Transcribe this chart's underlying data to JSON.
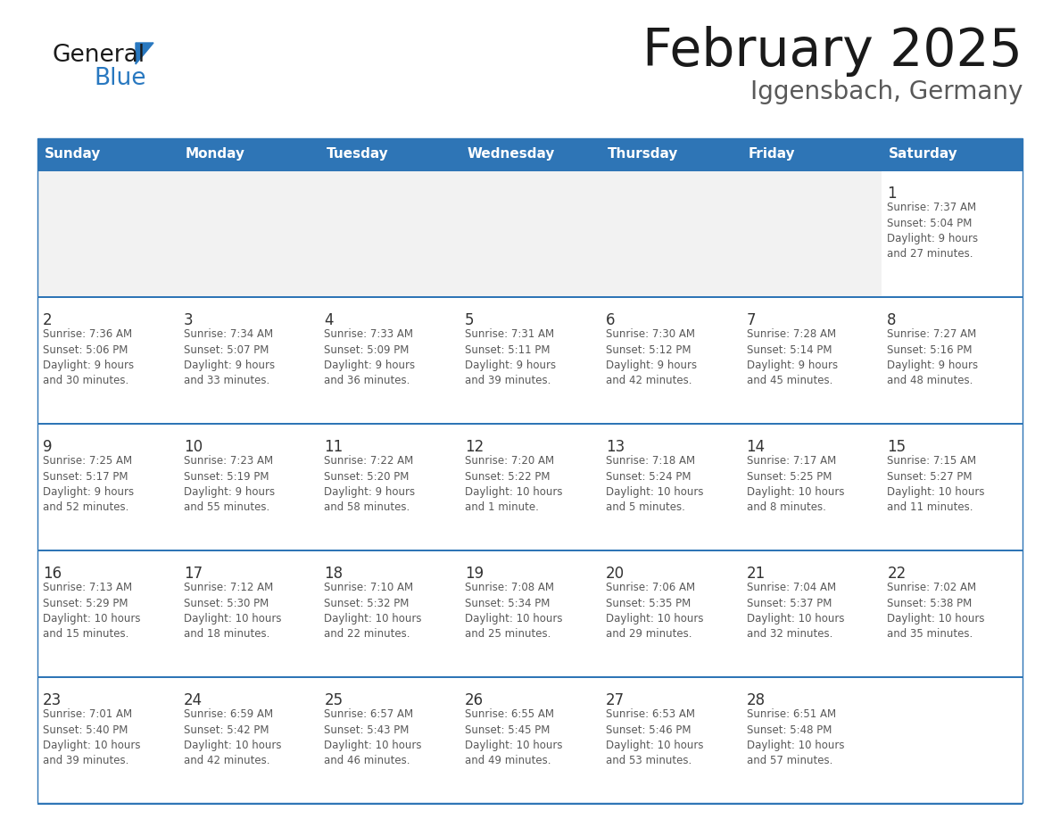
{
  "title": "February 2025",
  "subtitle": "Iggensbach, Germany",
  "days_of_week": [
    "Sunday",
    "Monday",
    "Tuesday",
    "Wednesday",
    "Thursday",
    "Friday",
    "Saturday"
  ],
  "header_bg": "#2E75B6",
  "header_text": "#FFFFFF",
  "cell_bg_white": "#FFFFFF",
  "cell_bg_gray": "#F2F2F2",
  "separator_color": "#2E75B6",
  "day_number_color": "#333333",
  "day_text_color": "#595959",
  "logo_general_color": "#1a1a1a",
  "logo_blue_color": "#2878C0",
  "title_color": "#1a1a1a",
  "subtitle_color": "#595959",
  "calendar_data": [
    [
      {
        "day": null,
        "info": ""
      },
      {
        "day": null,
        "info": ""
      },
      {
        "day": null,
        "info": ""
      },
      {
        "day": null,
        "info": ""
      },
      {
        "day": null,
        "info": ""
      },
      {
        "day": null,
        "info": ""
      },
      {
        "day": 1,
        "info": "Sunrise: 7:37 AM\nSunset: 5:04 PM\nDaylight: 9 hours\nand 27 minutes."
      }
    ],
    [
      {
        "day": 2,
        "info": "Sunrise: 7:36 AM\nSunset: 5:06 PM\nDaylight: 9 hours\nand 30 minutes."
      },
      {
        "day": 3,
        "info": "Sunrise: 7:34 AM\nSunset: 5:07 PM\nDaylight: 9 hours\nand 33 minutes."
      },
      {
        "day": 4,
        "info": "Sunrise: 7:33 AM\nSunset: 5:09 PM\nDaylight: 9 hours\nand 36 minutes."
      },
      {
        "day": 5,
        "info": "Sunrise: 7:31 AM\nSunset: 5:11 PM\nDaylight: 9 hours\nand 39 minutes."
      },
      {
        "day": 6,
        "info": "Sunrise: 7:30 AM\nSunset: 5:12 PM\nDaylight: 9 hours\nand 42 minutes."
      },
      {
        "day": 7,
        "info": "Sunrise: 7:28 AM\nSunset: 5:14 PM\nDaylight: 9 hours\nand 45 minutes."
      },
      {
        "day": 8,
        "info": "Sunrise: 7:27 AM\nSunset: 5:16 PM\nDaylight: 9 hours\nand 48 minutes."
      }
    ],
    [
      {
        "day": 9,
        "info": "Sunrise: 7:25 AM\nSunset: 5:17 PM\nDaylight: 9 hours\nand 52 minutes."
      },
      {
        "day": 10,
        "info": "Sunrise: 7:23 AM\nSunset: 5:19 PM\nDaylight: 9 hours\nand 55 minutes."
      },
      {
        "day": 11,
        "info": "Sunrise: 7:22 AM\nSunset: 5:20 PM\nDaylight: 9 hours\nand 58 minutes."
      },
      {
        "day": 12,
        "info": "Sunrise: 7:20 AM\nSunset: 5:22 PM\nDaylight: 10 hours\nand 1 minute."
      },
      {
        "day": 13,
        "info": "Sunrise: 7:18 AM\nSunset: 5:24 PM\nDaylight: 10 hours\nand 5 minutes."
      },
      {
        "day": 14,
        "info": "Sunrise: 7:17 AM\nSunset: 5:25 PM\nDaylight: 10 hours\nand 8 minutes."
      },
      {
        "day": 15,
        "info": "Sunrise: 7:15 AM\nSunset: 5:27 PM\nDaylight: 10 hours\nand 11 minutes."
      }
    ],
    [
      {
        "day": 16,
        "info": "Sunrise: 7:13 AM\nSunset: 5:29 PM\nDaylight: 10 hours\nand 15 minutes."
      },
      {
        "day": 17,
        "info": "Sunrise: 7:12 AM\nSunset: 5:30 PM\nDaylight: 10 hours\nand 18 minutes."
      },
      {
        "day": 18,
        "info": "Sunrise: 7:10 AM\nSunset: 5:32 PM\nDaylight: 10 hours\nand 22 minutes."
      },
      {
        "day": 19,
        "info": "Sunrise: 7:08 AM\nSunset: 5:34 PM\nDaylight: 10 hours\nand 25 minutes."
      },
      {
        "day": 20,
        "info": "Sunrise: 7:06 AM\nSunset: 5:35 PM\nDaylight: 10 hours\nand 29 minutes."
      },
      {
        "day": 21,
        "info": "Sunrise: 7:04 AM\nSunset: 5:37 PM\nDaylight: 10 hours\nand 32 minutes."
      },
      {
        "day": 22,
        "info": "Sunrise: 7:02 AM\nSunset: 5:38 PM\nDaylight: 10 hours\nand 35 minutes."
      }
    ],
    [
      {
        "day": 23,
        "info": "Sunrise: 7:01 AM\nSunset: 5:40 PM\nDaylight: 10 hours\nand 39 minutes."
      },
      {
        "day": 24,
        "info": "Sunrise: 6:59 AM\nSunset: 5:42 PM\nDaylight: 10 hours\nand 42 minutes."
      },
      {
        "day": 25,
        "info": "Sunrise: 6:57 AM\nSunset: 5:43 PM\nDaylight: 10 hours\nand 46 minutes."
      },
      {
        "day": 26,
        "info": "Sunrise: 6:55 AM\nSunset: 5:45 PM\nDaylight: 10 hours\nand 49 minutes."
      },
      {
        "day": 27,
        "info": "Sunrise: 6:53 AM\nSunset: 5:46 PM\nDaylight: 10 hours\nand 53 minutes."
      },
      {
        "day": 28,
        "info": "Sunrise: 6:51 AM\nSunset: 5:48 PM\nDaylight: 10 hours\nand 57 minutes."
      },
      {
        "day": null,
        "info": ""
      }
    ]
  ]
}
